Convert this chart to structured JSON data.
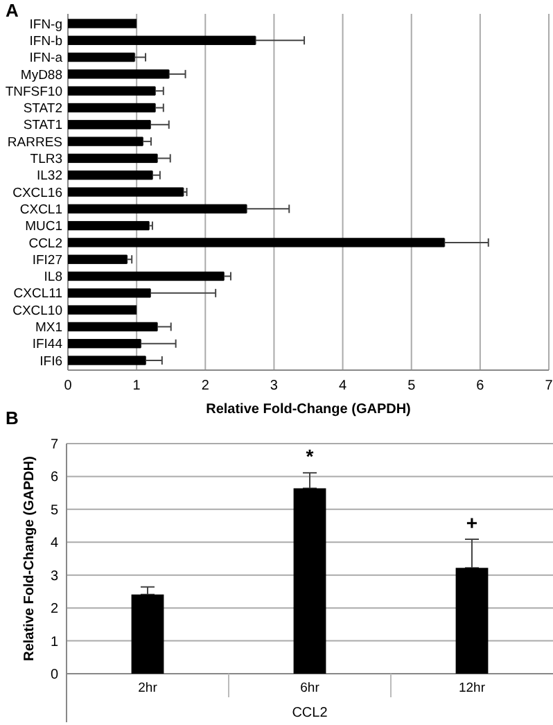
{
  "chart_data": [
    {
      "type": "bar",
      "title": "A",
      "orientation": "horizontal",
      "categories": [
        "IFN-g",
        "IFN-b",
        "IFN-a",
        "MyD88",
        "TNFSF10",
        "STAT2",
        "STAT1",
        "RARRES",
        "TLR3",
        "IL32",
        "CXCL16",
        "CXCL1",
        "MUC1",
        "CCL2",
        "IFI27",
        "IL8",
        "CXCL11",
        "CXCL10",
        "MX1",
        "IFI44",
        "IFI6"
      ],
      "series": [
        {
          "color": "#000000",
          "values": [
            1.0,
            2.73,
            0.97,
            1.47,
            1.27,
            1.27,
            1.2,
            1.09,
            1.3,
            1.23,
            1.68,
            2.6,
            1.18,
            5.48,
            0.86,
            2.27,
            1.2,
            1.0,
            1.3,
            1.06,
            1.13
          ],
          "errors": [
            null,
            [
              2.73,
              3.44
            ],
            [
              0.97,
              1.13
            ],
            [
              1.47,
              1.71
            ],
            [
              1.27,
              1.39
            ],
            [
              1.27,
              1.39
            ],
            [
              1.2,
              1.47
            ],
            [
              1.09,
              1.21
            ],
            [
              1.3,
              1.49
            ],
            [
              1.23,
              1.34
            ],
            [
              1.68,
              1.73
            ],
            [
              2.6,
              3.22
            ],
            [
              1.18,
              1.23
            ],
            [
              5.48,
              6.12
            ],
            [
              0.86,
              0.93
            ],
            [
              2.27,
              2.37
            ],
            [
              1.2,
              2.15
            ],
            null,
            [
              1.3,
              1.5
            ],
            [
              1.06,
              1.57
            ],
            [
              1.13,
              1.37
            ]
          ]
        }
      ],
      "xlabel": "Relative Fold-Change (GAPDH)",
      "xlim": [
        0,
        7
      ],
      "xticks": [
        0,
        1,
        2,
        3,
        4,
        5,
        6,
        7
      ],
      "grid": "x"
    },
    {
      "type": "bar",
      "title": "B",
      "categories": [
        "2hr",
        "6hr",
        "12hr"
      ],
      "series": [
        {
          "color": "#000000",
          "values": [
            2.41,
            5.64,
            3.22
          ],
          "errors": [
            [
              2.41,
              2.64
            ],
            [
              5.64,
              6.11
            ],
            [
              3.22,
              4.09
            ]
          ]
        }
      ],
      "xlabel": "CCL2",
      "ylabel": "Relative Fold-Change (GAPDH)",
      "ylim": [
        0,
        7
      ],
      "yticks": [
        0,
        1,
        2,
        3,
        4,
        5,
        6,
        7
      ],
      "grid": "y",
      "annotations": [
        "*",
        "+"
      ]
    }
  ]
}
